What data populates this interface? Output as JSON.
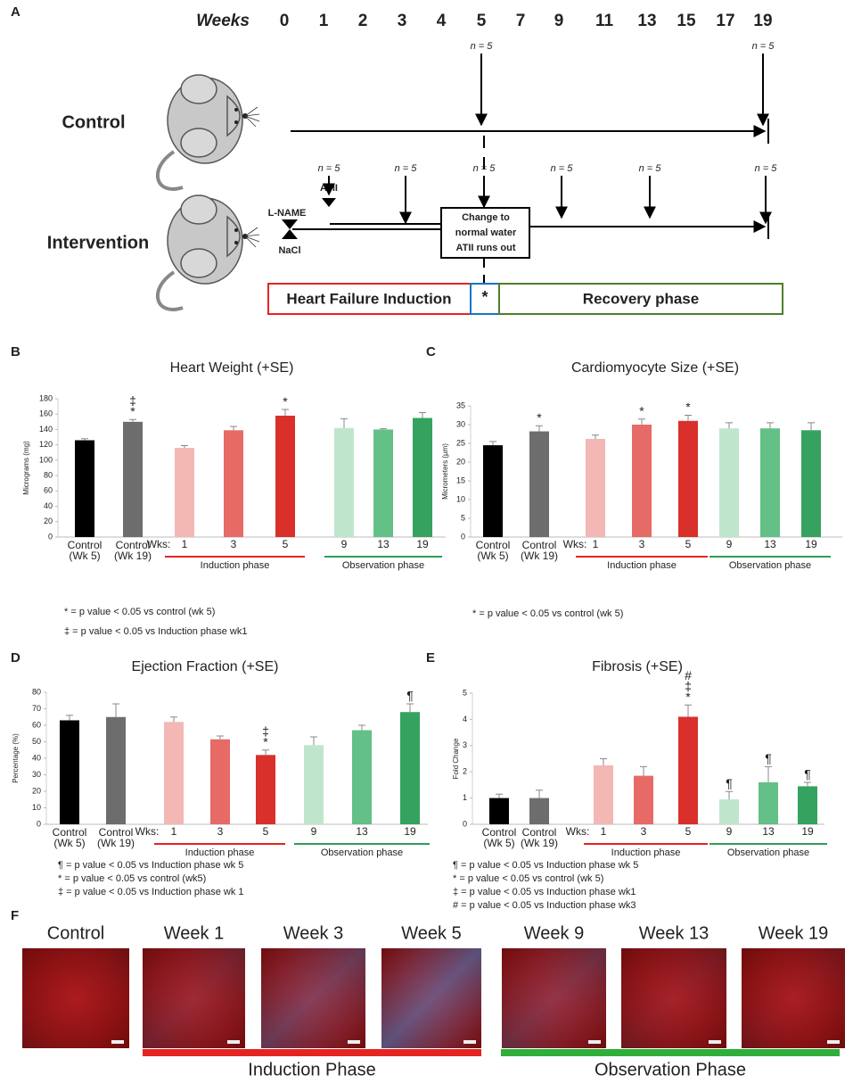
{
  "panel_labels": [
    "A",
    "F"
  ],
  "timeline": {
    "weeks_label": "Weeks",
    "induction_weeks": [
      0,
      1,
      2,
      3,
      4,
      5
    ],
    "recovery_weeks": [
      7,
      9,
      11,
      13,
      15,
      17,
      19
    ],
    "induction_color": "#e52421",
    "recovery_color": "#4d7f2a",
    "control": {
      "label": "Control",
      "samples": [
        {
          "week": 5,
          "label": "n = 5"
        },
        {
          "week": 19,
          "label": "n = 5"
        }
      ]
    },
    "intervention": {
      "label": "Intervention",
      "samples": [
        {
          "week": 1,
          "label": "n = 5"
        },
        {
          "week": 3,
          "label": "n = 5"
        },
        {
          "week": 5,
          "label": "n = 5"
        },
        {
          "week": 9,
          "label": "n = 5"
        },
        {
          "week": 13,
          "label": "n = 5"
        },
        {
          "week": 19,
          "label": "n = 5"
        }
      ],
      "treatments": [
        "L-NAME",
        "NaCl",
        "ATII"
      ],
      "box": [
        "Change to",
        "normal water",
        "ATII runs out"
      ]
    },
    "phases": {
      "induction": "Heart Failure Induction",
      "marker": "*",
      "recovery": "Recovery phase",
      "marker_color": "#1a73c4"
    }
  },
  "chart_data": [
    {
      "type": "bar",
      "panel": "B",
      "title": "Heart Weight (+SE)",
      "y_label": "Micrograms (mg)",
      "ylim": [
        0,
        180
      ],
      "yticks": [
        0,
        20,
        40,
        60,
        80,
        100,
        120,
        140,
        160,
        180
      ],
      "x_prefix": "Wks:",
      "categories": [
        "Control (Wk 5)",
        "Control (Wk 19)",
        "1",
        "3",
        "5",
        "9",
        "13",
        "19"
      ],
      "values": [
        126,
        150,
        116,
        139,
        158,
        142,
        140,
        155
      ],
      "errors": [
        2,
        3,
        3,
        5,
        8,
        12,
        1,
        7
      ],
      "markers": [
        null,
        [
          "‡",
          "*"
        ],
        null,
        null,
        [
          "*"
        ],
        null,
        null,
        null
      ],
      "colors": [
        "#000000",
        "#6d6d6d",
        "#f3b7b4",
        "#e66a66",
        "#d9302c",
        "#bfe6cc",
        "#63c086",
        "#35a35f"
      ],
      "groups": [
        {
          "label": "Induction phase",
          "color": "#e52421"
        },
        {
          "label": "Observation phase",
          "color": "#2e9e57"
        }
      ],
      "footnotes": [
        "* = p value < 0.05 vs control (wk 5)",
        "‡ = p value < 0.05 vs Induction phase wk1"
      ]
    },
    {
      "type": "bar",
      "panel": "C",
      "title": "Cardiomyocyte Size (+SE)",
      "y_label": "Micrometers (µm)",
      "ylim": [
        0,
        35
      ],
      "yticks": [
        0,
        5,
        10,
        15,
        20,
        25,
        30,
        35
      ],
      "x_prefix": "Wks:",
      "categories": [
        "Control (Wk 5)",
        "Control (Wk 19)",
        "1",
        "3",
        "5",
        "9",
        "13",
        "19"
      ],
      "values": [
        24.5,
        28.2,
        26.2,
        30,
        31,
        29,
        29,
        28.5
      ],
      "errors": [
        1,
        1.5,
        1,
        1.5,
        1.5,
        1.5,
        1.5,
        2
      ],
      "markers": [
        null,
        [
          "*"
        ],
        null,
        [
          "*"
        ],
        [
          "*"
        ],
        null,
        null,
        null
      ],
      "colors": [
        "#000000",
        "#6d6d6d",
        "#f3b7b4",
        "#e66a66",
        "#d9302c",
        "#bfe6cc",
        "#63c086",
        "#35a35f"
      ],
      "groups": [
        {
          "label": "Induction phase",
          "color": "#e52421"
        },
        {
          "label": "Observation phase",
          "color": "#2e9e57"
        }
      ],
      "footnotes": [
        "* = p value < 0.05 vs control (wk 5)"
      ]
    },
    {
      "type": "bar",
      "panel": "D",
      "title": "Ejection Fraction (+SE)",
      "y_label": "Percentage (%)",
      "ylim": [
        0,
        80
      ],
      "yticks": [
        0,
        10,
        20,
        30,
        40,
        50,
        60,
        70,
        80
      ],
      "x_prefix": "Wks:",
      "categories": [
        "Control (Wk 5)",
        "Control (Wk 19)",
        "1",
        "3",
        "5",
        "9",
        "13",
        "19"
      ],
      "values": [
        63,
        65,
        62,
        51.5,
        42,
        48,
        57,
        68
      ],
      "errors": [
        3,
        8,
        3,
        2,
        3,
        5,
        3,
        5
      ],
      "markers": [
        null,
        null,
        null,
        null,
        [
          "‡",
          "*"
        ],
        null,
        null,
        [
          "¶"
        ]
      ],
      "colors": [
        "#000000",
        "#6d6d6d",
        "#f3b7b4",
        "#e66a66",
        "#d9302c",
        "#bfe6cc",
        "#63c086",
        "#35a35f"
      ],
      "groups": [
        {
          "label": "Induction phase",
          "color": "#e52421"
        },
        {
          "label": "Observation phase",
          "color": "#2e9e57"
        }
      ],
      "footnotes": [
        "¶ = p value < 0.05 vs Induction phase wk 5",
        "* = p value < 0.05 vs control (wk5)",
        "‡ = p value < 0.05 vs Induction phase wk 1"
      ]
    },
    {
      "type": "bar",
      "panel": "E",
      "title": "Fibrosis (+SE)",
      "y_label": "Fold Change",
      "ylim": [
        0,
        5
      ],
      "yticks": [
        0,
        1,
        2,
        3,
        4,
        5
      ],
      "x_prefix": "Wks:",
      "categories": [
        "Control (Wk 5)",
        "Control (Wk 19)",
        "1",
        "3",
        "5",
        "9",
        "13",
        "19"
      ],
      "values": [
        1.0,
        1.0,
        2.25,
        1.85,
        4.1,
        0.95,
        1.6,
        1.45
      ],
      "errors": [
        0.15,
        0.3,
        0.25,
        0.35,
        0.45,
        0.3,
        0.6,
        0.15
      ],
      "markers": [
        null,
        null,
        null,
        null,
        [
          "#",
          "‡",
          "*"
        ],
        [
          "¶"
        ],
        [
          "¶"
        ],
        [
          "¶"
        ]
      ],
      "colors": [
        "#000000",
        "#6d6d6d",
        "#f3b7b4",
        "#e66a66",
        "#d9302c",
        "#bfe6cc",
        "#63c086",
        "#35a35f"
      ],
      "groups": [
        {
          "label": "Induction phase",
          "color": "#e52421"
        },
        {
          "label": "Observation phase",
          "color": "#2e9e57"
        }
      ],
      "footnotes": [
        "¶ = p value < 0.05 vs Induction phase wk 5",
        "* = p value < 0.05 vs control (wk 5)",
        "‡ = p value < 0.05 vs Induction phase wk1",
        "# = p value < 0.05 vs Induction phase wk3"
      ]
    }
  ],
  "histology": {
    "labels": [
      "Control",
      "Week 1",
      "Week 3",
      "Week 5",
      "Week 9",
      "Week 13",
      "Week 19"
    ],
    "phases": [
      {
        "label": "Induction Phase",
        "color": "#e52421"
      },
      {
        "label": "Observation Phase",
        "color": "#2fae3a"
      }
    ]
  }
}
